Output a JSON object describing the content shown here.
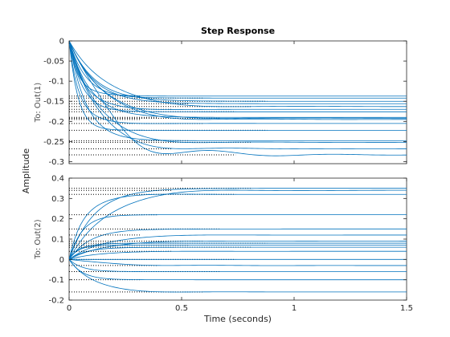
{
  "colors": {
    "series": "#0072BD"
  },
  "chart_data": {
    "type": "line",
    "title": "Step Response",
    "xlabel": "Time (seconds)",
    "ylabel": "Amplitude",
    "xlim": [
      0,
      1.5
    ],
    "xticks": [
      "0",
      "0.5",
      "1",
      "1.5"
    ],
    "panels": [
      {
        "row_label": "To: Out(1)",
        "ylim": [
          -0.305,
          0
        ],
        "yticks": [
          {
            "v": 0,
            "label": "0"
          },
          {
            "v": -0.05,
            "label": "-0.05"
          },
          {
            "v": -0.1,
            "label": "-0.1"
          },
          {
            "v": -0.15,
            "label": "-0.15"
          },
          {
            "v": -0.2,
            "label": "-0.2"
          },
          {
            "v": -0.25,
            "label": "-0.25"
          },
          {
            "v": -0.3,
            "label": "-0.3"
          }
        ],
        "series": [
          {
            "values": [
              -0.137
            ]
          },
          {
            "values": [
              -0.142
            ]
          },
          {
            "values": [
              -0.15
            ]
          },
          {
            "values": [
              -0.156
            ]
          },
          {
            "values": [
              -0.163
            ]
          },
          {
            "values": [
              -0.17
            ]
          },
          {
            "values": [
              -0.176
            ]
          },
          {
            "values": [
              -0.19
            ]
          },
          {
            "values": [
              -0.192
            ]
          },
          {
            "values": [
              -0.195
            ]
          },
          {
            "values": [
              -0.205
            ]
          },
          {
            "values": [
              -0.222
            ]
          },
          {
            "values": [
              -0.248
            ]
          },
          {
            "values": [
              -0.252
            ]
          },
          {
            "values": [
              -0.268
            ]
          },
          {
            "values": [
              -0.283
            ]
          }
        ]
      },
      {
        "row_label": "To: Out(2)",
        "ylim": [
          -0.2,
          0.4
        ],
        "yticks": [
          {
            "v": 0.4,
            "label": "0.4"
          },
          {
            "v": 0.3,
            "label": "0.3"
          },
          {
            "v": 0.2,
            "label": "0.2"
          },
          {
            "v": 0.1,
            "label": "0.1"
          },
          {
            "v": 0,
            "label": "0"
          },
          {
            "v": -0.1,
            "label": "-0.1"
          },
          {
            "v": -0.2,
            "label": "-0.2"
          }
        ],
        "series": [
          {
            "values": [
              0.35
            ]
          },
          {
            "values": [
              0.34
            ]
          },
          {
            "values": [
              0.32
            ]
          },
          {
            "values": [
              0.22
            ]
          },
          {
            "values": [
              0.15
            ]
          },
          {
            "values": [
              0.12
            ]
          },
          {
            "values": [
              0.09
            ]
          },
          {
            "values": [
              0.08
            ]
          },
          {
            "values": [
              0.07
            ]
          },
          {
            "values": [
              0.06
            ]
          },
          {
            "values": [
              0.04
            ]
          },
          {
            "values": [
              0.0
            ]
          },
          {
            "values": [
              -0.03
            ]
          },
          {
            "values": [
              -0.06
            ]
          },
          {
            "values": [
              -0.1
            ]
          },
          {
            "values": [
              -0.16
            ]
          }
        ]
      }
    ]
  }
}
